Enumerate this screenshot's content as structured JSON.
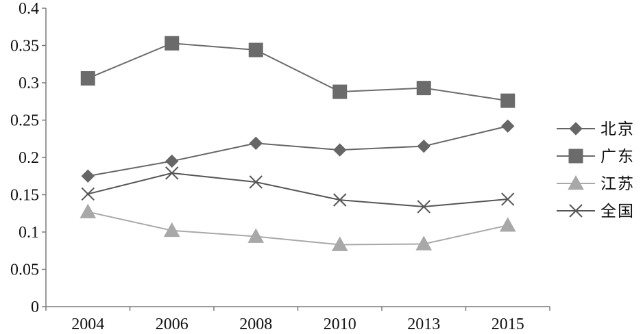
{
  "chart_data": {
    "type": "line",
    "categories": [
      "2004",
      "2006",
      "2008",
      "2010",
      "2013",
      "2015"
    ],
    "yticks": [
      "0",
      "0.05",
      "0.1",
      "0.15",
      "0.2",
      "0.25",
      "0.3",
      "0.35",
      "0.4"
    ],
    "ylim": [
      0,
      0.4
    ],
    "grid": false,
    "legend_position": "right",
    "series": [
      {
        "name": "北京",
        "marker": "diamond",
        "color": "#666666",
        "values": [
          0.175,
          0.195,
          0.219,
          0.21,
          0.215,
          0.242
        ]
      },
      {
        "name": "广东",
        "marker": "square",
        "color": "#6b6b6b",
        "values": [
          0.306,
          0.353,
          0.344,
          0.288,
          0.293,
          0.276
        ]
      },
      {
        "name": "江苏",
        "marker": "triangle",
        "color": "#a8a8a8",
        "values": [
          0.127,
          0.102,
          0.094,
          0.083,
          0.084,
          0.109
        ]
      },
      {
        "name": "全国",
        "marker": "x",
        "color": "#555555",
        "values": [
          0.151,
          0.179,
          0.167,
          0.143,
          0.134,
          0.144
        ]
      }
    ]
  }
}
